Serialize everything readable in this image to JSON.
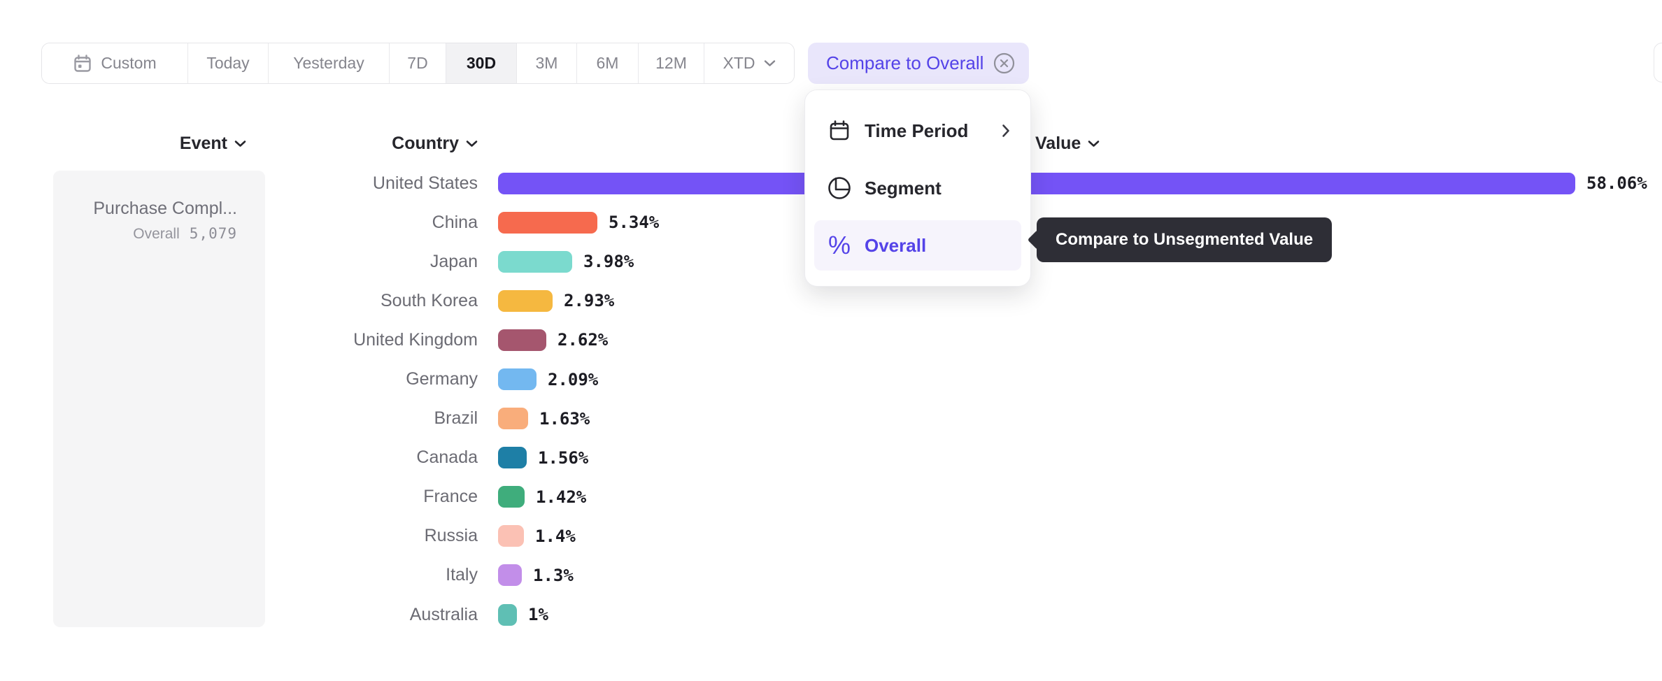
{
  "toolbar": {
    "buttons": [
      {
        "label": "Custom",
        "icon": "calendar-icon",
        "selected": false
      },
      {
        "label": "Today",
        "selected": false
      },
      {
        "label": "Yesterday",
        "selected": false
      },
      {
        "label": "7D",
        "selected": false
      },
      {
        "label": "30D",
        "selected": true
      },
      {
        "label": "3M",
        "selected": false
      },
      {
        "label": "6M",
        "selected": false
      },
      {
        "label": "12M",
        "selected": false
      },
      {
        "label": "XTD",
        "icon": "chevron-down-icon",
        "selected": false
      }
    ]
  },
  "compare_chip": {
    "label": "Compare to Overall",
    "close_icon": "x-circle-icon",
    "text_color": "#5443E8",
    "bg_color": "#E9E6FB"
  },
  "menu": {
    "items": [
      {
        "label": "Time Period",
        "icon": "calendar-icon",
        "has_submenu": true,
        "selected": false
      },
      {
        "label": "Segment",
        "icon": "segment-icon",
        "has_submenu": false,
        "selected": false
      },
      {
        "label": "Overall",
        "icon": "percent-icon",
        "has_submenu": false,
        "selected": true
      }
    ]
  },
  "tooltip": {
    "text": "Compare to Unsegmented Value",
    "bg_color": "#2E2E36"
  },
  "columns": {
    "event": "Event",
    "country": "Country",
    "value": "Value"
  },
  "event_panel": {
    "event_name": "Purchase Compl...",
    "overall_label": "Overall",
    "overall_value": "5,079"
  },
  "chart_data": {
    "type": "bar",
    "orientation": "horizontal",
    "categories": [
      "United States",
      "China",
      "Japan",
      "South Korea",
      "United Kingdom",
      "Germany",
      "Brazil",
      "Canada",
      "France",
      "Russia",
      "Italy",
      "Australia"
    ],
    "values": [
      58.06,
      5.34,
      3.98,
      2.93,
      2.62,
      2.09,
      1.63,
      1.56,
      1.42,
      1.4,
      1.3,
      1
    ],
    "value_labels": [
      "58.06%",
      "5.34%",
      "3.98%",
      "2.93%",
      "2.62%",
      "2.09%",
      "1.63%",
      "1.56%",
      "1.42%",
      "1.4%",
      "1.3%",
      "1%"
    ],
    "colors": [
      "#7453F6",
      "#F66A4E",
      "#7BDACE",
      "#F5B840",
      "#A5566E",
      "#73B8F0",
      "#F9AD7B",
      "#1E7FA6",
      "#3FAD7C",
      "#FBC1B4",
      "#C28EE9",
      "#5FBFB4"
    ],
    "xlim": [
      0,
      58.06
    ],
    "value_suffix": "%",
    "grid": false,
    "legend": false,
    "title": ""
  }
}
